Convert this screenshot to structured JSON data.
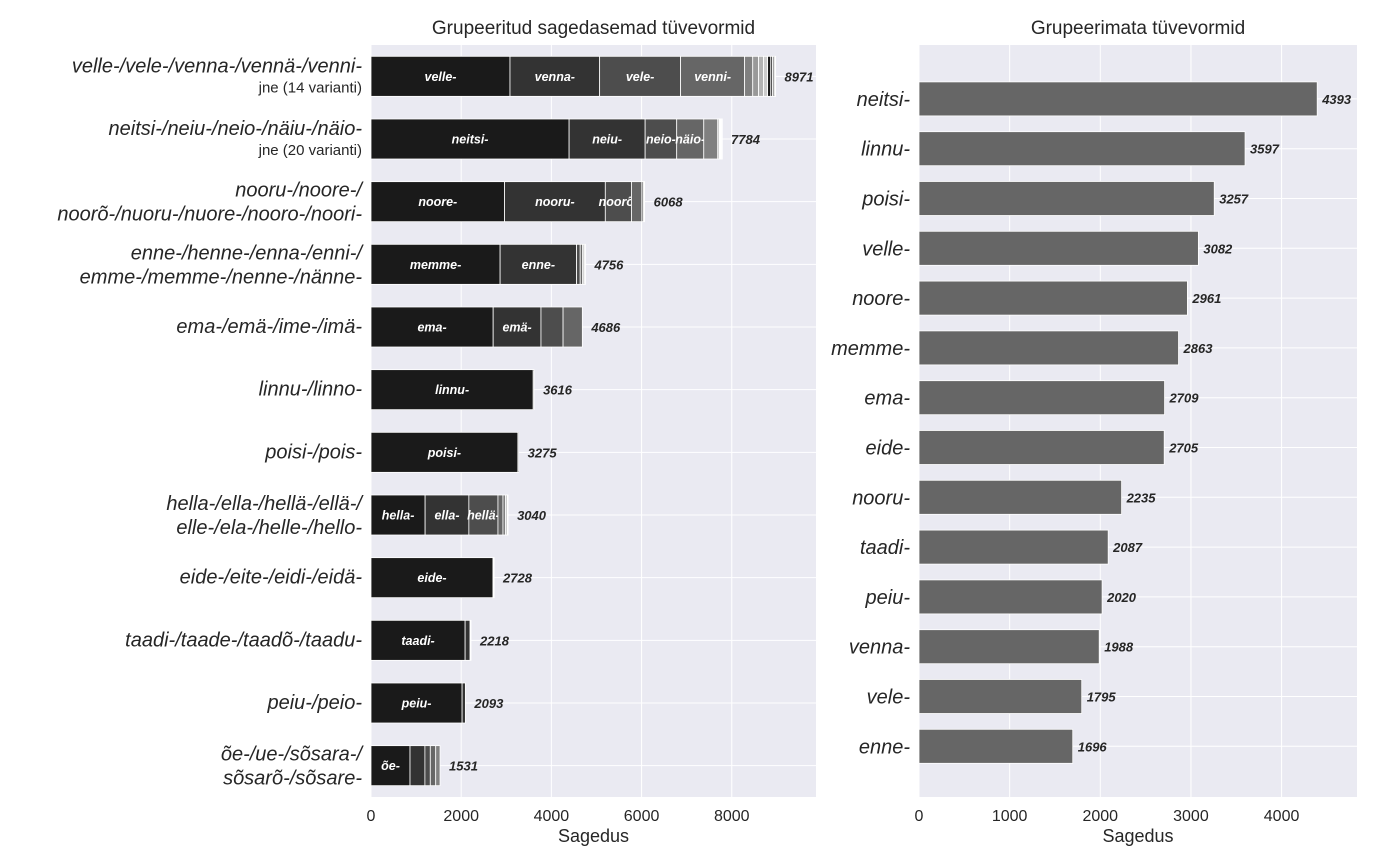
{
  "chart_data": [
    {
      "type": "bar",
      "orientation": "horizontal",
      "stacked": true,
      "title": "Grupeeritud sagedasemad tüvevormid",
      "xlabel": "Sagedus",
      "xlim": [
        0,
        9868
      ],
      "xticks": [
        0,
        2000,
        4000,
        6000,
        8000
      ],
      "grid": true,
      "segment_colors": [
        "#1a1a1a",
        "#333333",
        "#4d4d4d",
        "#666666",
        "#808080",
        "#999999",
        "#b3b3b3",
        "#cccccc"
      ],
      "rows": [
        {
          "label": [
            "velle-/vele-/venna-/vennä-/venni-"
          ],
          "sub": "jne (14 varianti)",
          "total": 8971,
          "segments": [
            3082,
            1988,
            1795,
            1420,
            180,
            130,
            110,
            90,
            70,
            40,
            30,
            20,
            10,
            6
          ],
          "segment_labels": [
            "velle-",
            "venna-",
            "vele-",
            "venni-"
          ]
        },
        {
          "label": [
            "neitsi-/neiu-/neio-/näiu-/näio-"
          ],
          "sub": "jne (20 varianti)",
          "total": 7784,
          "segments": [
            4393,
            1686,
            700,
            600,
            310,
            30,
            15,
            10,
            8,
            6,
            5,
            4,
            3,
            3,
            2,
            2,
            2,
            2,
            2,
            1
          ],
          "segment_labels": [
            "neitsi-",
            "neiu-",
            "neio-",
            "näio-"
          ]
        },
        {
          "label": [
            "nooru-/noore-/",
            "noorõ-/nuoru-/nuore-/nooro-/noori-"
          ],
          "total": 6068,
          "segments": [
            2961,
            2235,
            580,
            230,
            40,
            15,
            7
          ],
          "segment_labels": [
            "noore-",
            "nooru-",
            "noorõ-"
          ]
        },
        {
          "label": [
            "enne-/henne-/enna-/enni-/",
            "emme-/memme-/nenne-/nänne-"
          ],
          "total": 4756,
          "segments": [
            2863,
            1696,
            80,
            50,
            30,
            20,
            10,
            7
          ],
          "segment_labels": [
            "memme-",
            "enne-"
          ]
        },
        {
          "label": [
            "ema-/emä-/ime-/imä-"
          ],
          "total": 4686,
          "segments": [
            2709,
            1060,
            490,
            427
          ],
          "segment_labels": [
            "ema-",
            "emä-"
          ]
        },
        {
          "label": [
            "linnu-/linno-"
          ],
          "total": 3616,
          "segments": [
            3597,
            19
          ],
          "segment_labels": [
            "linnu-"
          ]
        },
        {
          "label": [
            "poisi-/pois-"
          ],
          "total": 3275,
          "segments": [
            3257,
            18
          ],
          "segment_labels": [
            "poisi-"
          ]
        },
        {
          "label": [
            "hella-/ella-/hellä-/ellä-/",
            "elle-/ela-/helle-/hello-"
          ],
          "total": 3040,
          "segments": [
            1200,
            970,
            645,
            110,
            60,
            30,
            15,
            10
          ],
          "segment_labels": [
            "hella-",
            "ella-",
            "hellä-"
          ]
        },
        {
          "label": [
            "eide-/eite-/eidi-/eidä-"
          ],
          "total": 2728,
          "segments": [
            2705,
            15,
            5,
            3
          ],
          "segment_labels": [
            "eide-"
          ]
        },
        {
          "label": [
            "taadi-/taade-/taadõ-/taadu-"
          ],
          "total": 2218,
          "segments": [
            2087,
            110,
            15,
            6
          ],
          "segment_labels": [
            "taadi-"
          ]
        },
        {
          "label": [
            "peiu-/peio-"
          ],
          "total": 2093,
          "segments": [
            2020,
            73
          ],
          "segment_labels": [
            "peiu-"
          ]
        },
        {
          "label": [
            "õe-/ue-/sõsara-/",
            "sõsarõ-/sõsare-"
          ],
          "total": 1531,
          "segments": [
            865,
            330,
            120,
            120,
            96
          ],
          "segment_labels": [
            "õe-"
          ]
        }
      ]
    },
    {
      "type": "bar",
      "orientation": "horizontal",
      "title": "Grupeerimata tüvevormid",
      "xlabel": "Sagedus",
      "xlim": [
        0,
        4832
      ],
      "xticks": [
        0,
        1000,
        2000,
        3000,
        4000
      ],
      "grid": true,
      "bar_color": "#666666",
      "categories": [
        "neitsi-",
        "linnu-",
        "poisi-",
        "velle-",
        "noore-",
        "memme-",
        "ema-",
        "eide-",
        "nooru-",
        "taadi-",
        "peiu-",
        "venna-",
        "vele-",
        "enne-"
      ],
      "values": [
        4393,
        3597,
        3257,
        3082,
        2961,
        2863,
        2709,
        2705,
        2235,
        2087,
        2020,
        1988,
        1795,
        1696
      ]
    }
  ]
}
